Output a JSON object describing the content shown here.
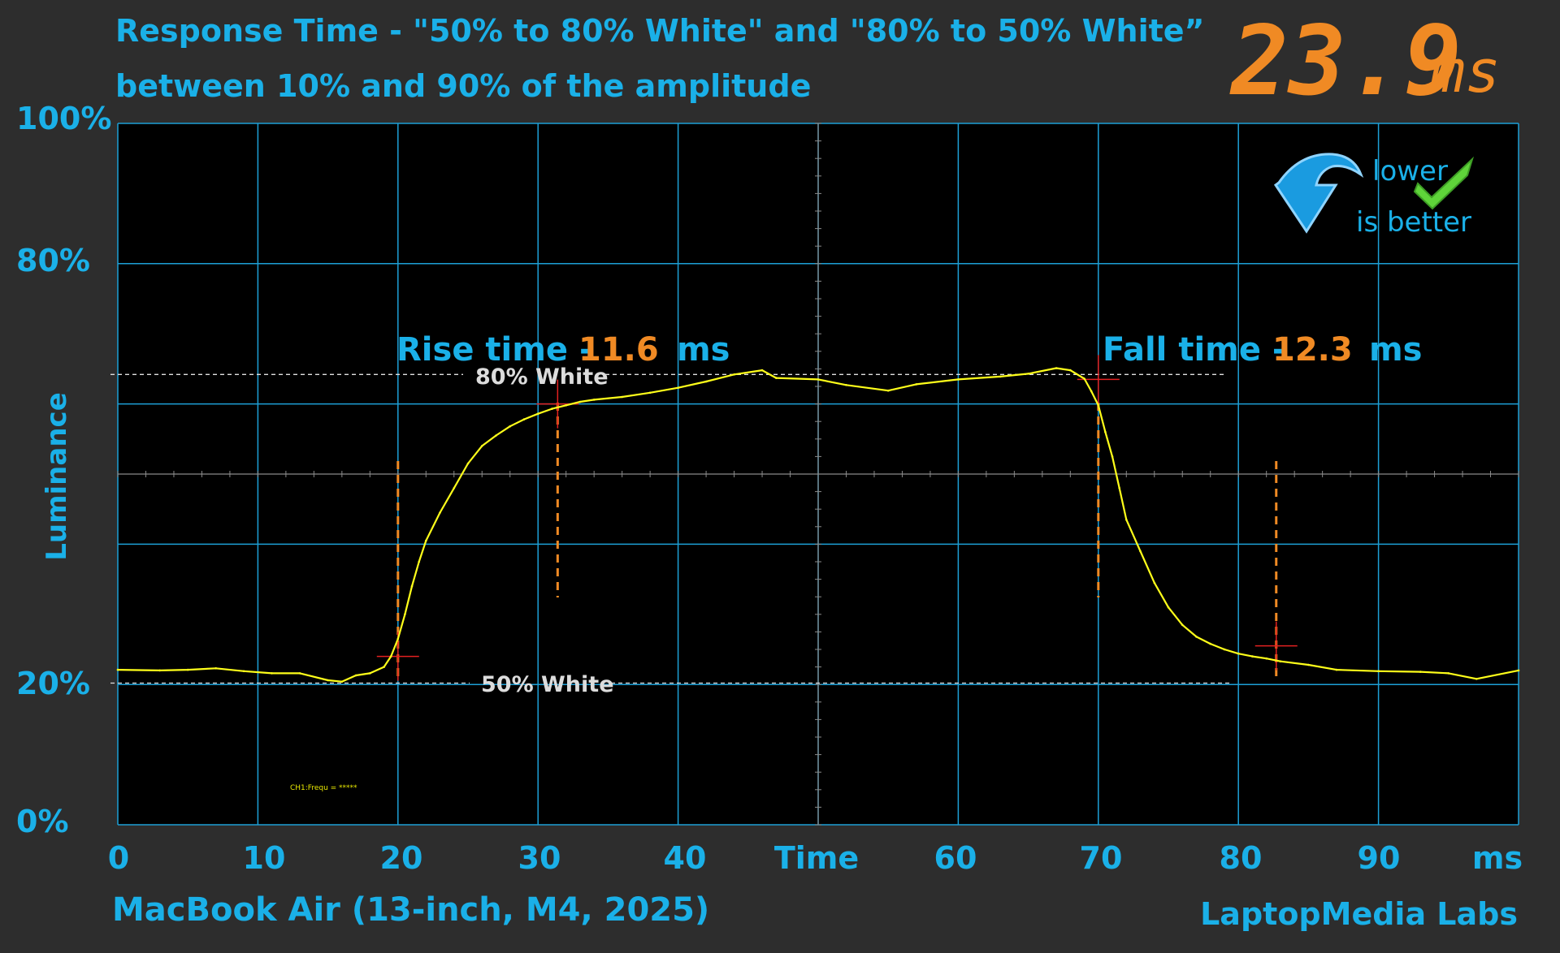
{
  "header": {
    "title_line1": "Response Time - \"50% to 80% White\" and \"80% to 50% White”",
    "title_line2": "between 10% and 90% of the amplitude",
    "total_value": "23.9",
    "total_unit": "ms"
  },
  "badge": {
    "line1": "lower",
    "line2": "is better"
  },
  "annotations": {
    "rise_label": "Rise time -",
    "rise_value": "11.6",
    "rise_unit": "ms",
    "fall_label": "Fall time -",
    "fall_value": "12.3",
    "fall_unit": "ms",
    "ref_high": "80% White",
    "ref_low": "50% White",
    "channel_note": "CH1:Frequ = *****"
  },
  "footer": {
    "device": "MacBook Air (13-inch, M4, 2025)",
    "credit": "LaptopMedia Labs"
  },
  "colors": {
    "accent": "#1ab0e8",
    "orange": "#f08a24",
    "trace": "#ffff1a",
    "grid": "#1d9fd6",
    "marker": "#e32020"
  },
  "chart_data": {
    "type": "line",
    "title": "Response Time - \"50% to 80% White\" and \"80% to 50% White”",
    "subtitle": "between 10% and 90% of the amplitude",
    "xlabel": "Time",
    "x_unit": "ms",
    "ylabel": "Luminance",
    "xlim": [
      0,
      100
    ],
    "ylim": [
      0,
      100
    ],
    "x_ticks": [
      "0",
      "10",
      "20",
      "30",
      "40",
      "Time",
      "60",
      "70",
      "80",
      "90",
      "ms"
    ],
    "y_ticks": [
      {
        "label": "100%",
        "value": 100
      },
      {
        "label": "80%",
        "value": 80
      },
      {
        "label": "20%",
        "value": 20
      },
      {
        "label": "0%",
        "value": 0
      }
    ],
    "grid": true,
    "series": [
      {
        "x": [
          0,
          3,
          5,
          7,
          9,
          11,
          13,
          15,
          16,
          17,
          18,
          19,
          19.5,
          20,
          20.5,
          21,
          21.5,
          22,
          23,
          24,
          25,
          26,
          27,
          28,
          29,
          30,
          31,
          32,
          33,
          34,
          36,
          38,
          40,
          42,
          44,
          46,
          47,
          50,
          52,
          55,
          57,
          60,
          63,
          65,
          67,
          68,
          69,
          69.5,
          70,
          70.5,
          71,
          71.5,
          72,
          73,
          74,
          75,
          76,
          77,
          78,
          79,
          80,
          81,
          82,
          83,
          85,
          87,
          90,
          93,
          95,
          97,
          100
        ],
        "y": [
          22.1,
          22.0,
          22.1,
          22.3,
          21.9,
          21.6,
          21.6,
          20.6,
          20.4,
          21.3,
          21.6,
          22.5,
          24.0,
          26.5,
          30.0,
          34.0,
          37.5,
          40.5,
          44.5,
          48.0,
          51.5,
          54.0,
          55.5,
          56.8,
          57.8,
          58.6,
          59.3,
          59.8,
          60.3,
          60.6,
          61.0,
          61.6,
          62.3,
          63.2,
          64.2,
          64.8,
          63.7,
          63.5,
          62.7,
          61.9,
          62.8,
          63.5,
          63.9,
          64.3,
          65.1,
          64.8,
          63.6,
          61.8,
          59.8,
          56.0,
          52.5,
          48.0,
          43.5,
          39.0,
          34.5,
          31.0,
          28.5,
          26.8,
          25.8,
          25.0,
          24.4,
          24.0,
          23.7,
          23.3,
          22.8,
          22.1,
          21.9,
          21.8,
          21.6,
          20.8,
          22.0
        ]
      }
    ],
    "reference_lines": [
      {
        "label": "80% White",
        "y": 64.2
      },
      {
        "label": "50% White",
        "y": 20.2
      }
    ],
    "rise_time_ms": 11.6,
    "fall_time_ms": 12.3,
    "total_ms": 23.9,
    "rise_markers_x": [
      20.0,
      31.4
    ],
    "fall_markers_x": [
      70.0,
      82.7
    ]
  }
}
